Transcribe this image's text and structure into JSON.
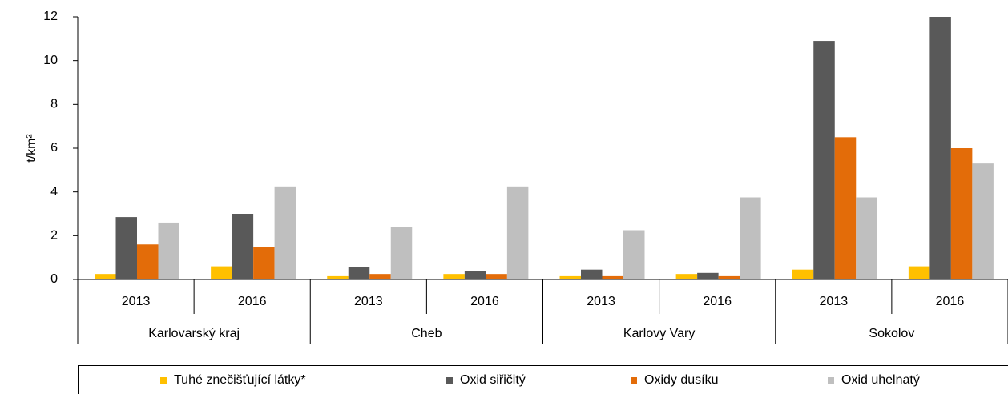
{
  "chart_data": {
    "type": "bar",
    "y_label": "t/km²",
    "categories": [
      "2013",
      "2016",
      "2013",
      "2016",
      "2013",
      "2016",
      "2013",
      "2016"
    ],
    "category_groups": [
      "Karlovarský kraj",
      "Cheb",
      "Karlovy Vary",
      "Sokolov"
    ],
    "series": [
      {
        "name": "Tuhé znečišťující látky*",
        "color": "#ffc000",
        "values": [
          0.25,
          0.6,
          0.15,
          0.25,
          0.15,
          0.25,
          0.45,
          0.6
        ]
      },
      {
        "name": "Oxid siřičitý",
        "color": "#595959",
        "values": [
          2.85,
          3.0,
          0.55,
          0.4,
          0.45,
          0.3,
          10.9,
          12
        ]
      },
      {
        "name": "Oxidy dusíku",
        "color": "#e36c09",
        "values": [
          1.6,
          1.5,
          0.25,
          0.25,
          0.15,
          0.15,
          6.5,
          6.0
        ]
      },
      {
        "name": "Oxid uhelnatý",
        "color": "#bfbfbf",
        "values": [
          2.6,
          4.25,
          2.4,
          4.25,
          2.25,
          3.75,
          3.75,
          5.3
        ]
      }
    ],
    "ylim": [
      0,
      12
    ],
    "yticks": [
      0,
      2,
      4,
      6,
      8,
      10,
      12
    ],
    "grid": false,
    "legend": "bottom"
  }
}
